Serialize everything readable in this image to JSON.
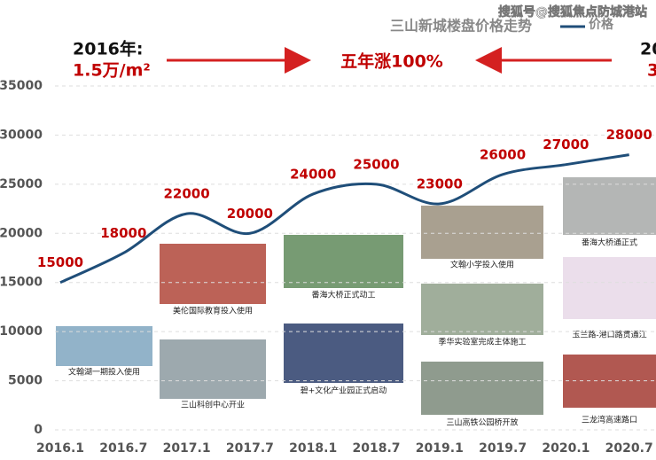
{
  "chart_data": {
    "type": "line",
    "title": "三山新城楼盘价格走势",
    "watermark": "搜狐号@搜狐焦点防城港站",
    "categories": [
      "2016.1",
      "2016.7",
      "2017.1",
      "2017.7",
      "2018.1",
      "2018.7",
      "2019.1",
      "2019.7",
      "2020.1",
      "2020.7"
    ],
    "series": [
      {
        "name": "价格",
        "color": "#1f4e79",
        "values": [
          15000,
          18000,
          22000,
          20000,
          24000,
          25000,
          23000,
          26000,
          27000,
          28000
        ]
      }
    ],
    "ylim": [
      0,
      35000
    ],
    "yticks": [
      0,
      5000,
      10000,
      15000,
      20000,
      25000,
      30000,
      35000
    ],
    "grid": true,
    "annotations": {
      "left_year": "2016年:",
      "left_price": "1.5万/m²",
      "center": "五年涨100%",
      "right_year": "20",
      "right_price": "3"
    },
    "photos": [
      "文翰湖一期投入使用",
      "三山科创中心开业",
      "美伦国际教育投入使用",
      "番海大桥正式动工",
      "碧+文化产业园正式启动",
      "文翰小学投入使用",
      "季华实验室完成主体施工",
      "三山高铁公园桥开放",
      "番海大桥通正式",
      "玉兰路-港口路贯通江",
      "三龙湾高速路口"
    ]
  }
}
